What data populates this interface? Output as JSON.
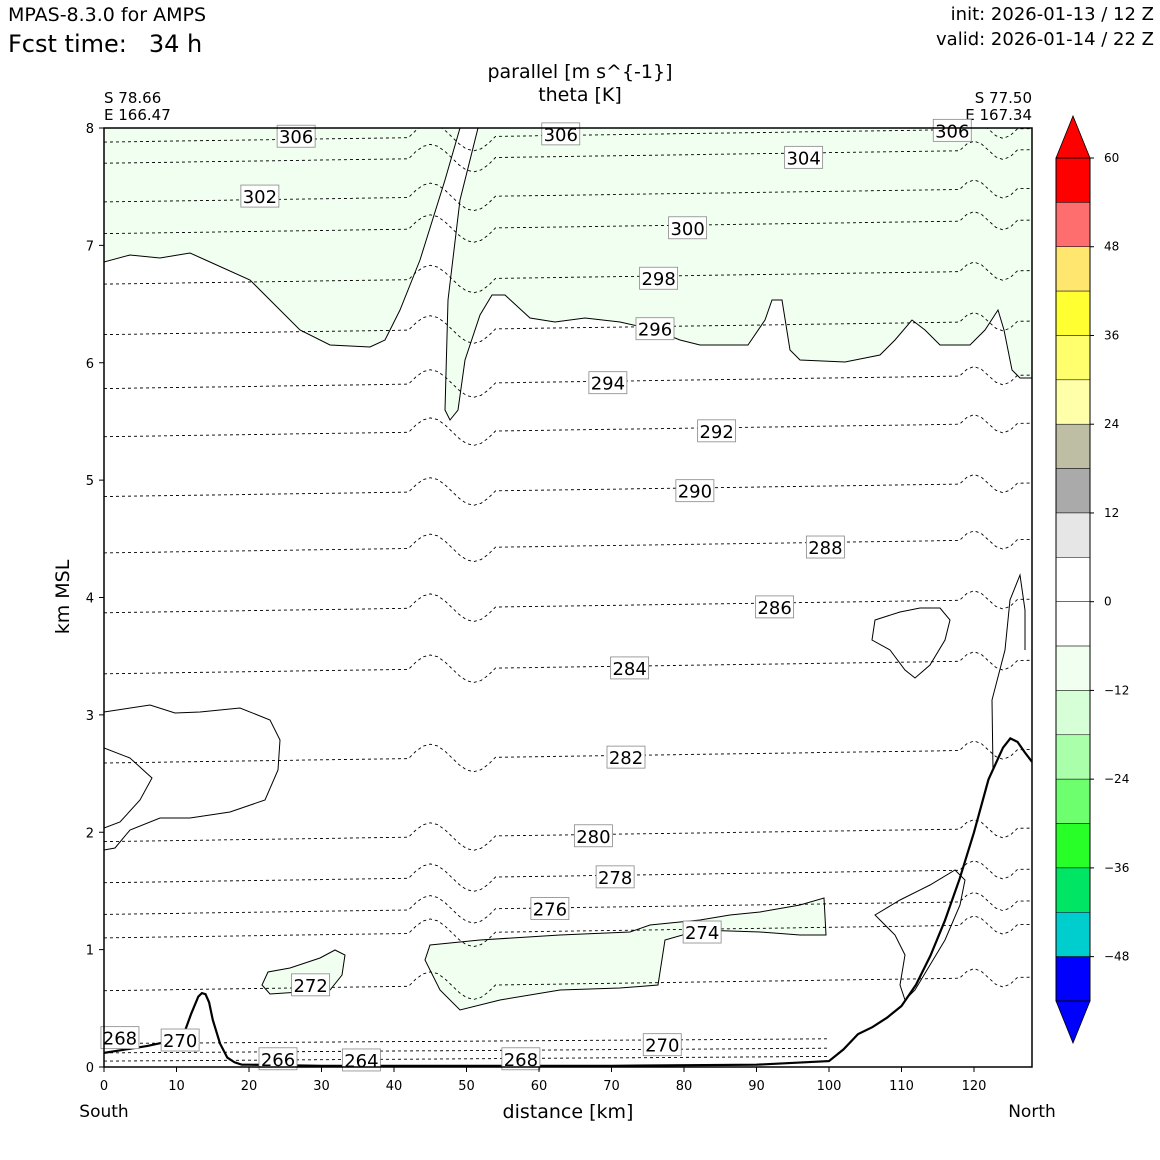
{
  "header": {
    "model": "MPAS-8.3.0 for AMPS",
    "fcst_label": "Fcst time:",
    "fcst_value": "34 h",
    "init": "init: 2026-01-13 / 12 Z",
    "valid": "valid: 2026-01-14 / 22 Z"
  },
  "chart_data": {
    "type": "cross-section",
    "title_line1": "parallel [m s^{-1}]",
    "title_line2": "theta [K]",
    "xlabel": "distance [km]",
    "ylabel": "km MSL",
    "xlim": [
      0,
      128
    ],
    "ylim": [
      0,
      8
    ],
    "xticks": [
      0,
      10,
      20,
      30,
      40,
      50,
      60,
      70,
      80,
      90,
      100,
      110,
      120
    ],
    "yticks": [
      0,
      1,
      2,
      3,
      4,
      5,
      6,
      7,
      8
    ],
    "left_end": {
      "lat": "S 78.66",
      "lon": "E 166.47",
      "dir": "South"
    },
    "right_end": {
      "lat": "S 77.50",
      "lon": "E 167.34",
      "dir": "North"
    },
    "colorbar": {
      "ticks": [
        "60",
        "48",
        "36",
        "24",
        "12",
        "0",
        "−12",
        "−24",
        "−36",
        "−48"
      ],
      "tick_values": [
        60,
        48,
        36,
        24,
        12,
        0,
        -12,
        -24,
        -36,
        -48
      ],
      "over_color": "#ff0000",
      "under_color": "#0000ff",
      "bands": [
        {
          "lo": 54,
          "hi": 60,
          "color": "#ff0000"
        },
        {
          "lo": 48,
          "hi": 54,
          "color": "#ff6e6e"
        },
        {
          "lo": 42,
          "hi": 48,
          "color": "#ffe66e"
        },
        {
          "lo": 36,
          "hi": 42,
          "color": "#ffff32"
        },
        {
          "lo": 30,
          "hi": 36,
          "color": "#ffff6e"
        },
        {
          "lo": 24,
          "hi": 30,
          "color": "#ffffaa"
        },
        {
          "lo": 18,
          "hi": 24,
          "color": "#bebea5"
        },
        {
          "lo": 12,
          "hi": 18,
          "color": "#aaaaaa"
        },
        {
          "lo": 6,
          "hi": 12,
          "color": "#e6e6e6"
        },
        {
          "lo": 0,
          "hi": 6,
          "color": "#ffffff"
        },
        {
          "lo": -6,
          "hi": 0,
          "color": "#ffffff"
        },
        {
          "lo": -12,
          "hi": -6,
          "color": "#f0fff0"
        },
        {
          "lo": -18,
          "hi": -12,
          "color": "#d7ffd7"
        },
        {
          "lo": -24,
          "hi": -18,
          "color": "#aaffaa"
        },
        {
          "lo": -30,
          "hi": -24,
          "color": "#6eff6e"
        },
        {
          "lo": -36,
          "hi": -30,
          "color": "#28ff28"
        },
        {
          "lo": -42,
          "hi": -36,
          "color": "#00e664"
        },
        {
          "lo": -48,
          "hi": -42,
          "color": "#00cdcd"
        },
        {
          "lo": -54,
          "hi": -48,
          "color": "#0000ff"
        }
      ]
    },
    "theta_labels": [
      {
        "text": "306",
        "x": 26.5,
        "y": 7.93
      },
      {
        "text": "306",
        "x": 63.0,
        "y": 7.95
      },
      {
        "text": "306",
        "x": 117.0,
        "y": 7.98
      },
      {
        "text": "304",
        "x": 96.5,
        "y": 7.75
      },
      {
        "text": "302",
        "x": 21.5,
        "y": 7.42
      },
      {
        "text": "300",
        "x": 80.5,
        "y": 7.15
      },
      {
        "text": "298",
        "x": 76.5,
        "y": 6.72
      },
      {
        "text": "296",
        "x": 76.0,
        "y": 6.29
      },
      {
        "text": "294",
        "x": 69.5,
        "y": 5.83
      },
      {
        "text": "292",
        "x": 84.5,
        "y": 5.42
      },
      {
        "text": "290",
        "x": 81.5,
        "y": 4.91
      },
      {
        "text": "288",
        "x": 99.5,
        "y": 4.43
      },
      {
        "text": "286",
        "x": 92.5,
        "y": 3.92
      },
      {
        "text": "284",
        "x": 72.5,
        "y": 3.4
      },
      {
        "text": "282",
        "x": 72.0,
        "y": 2.64
      },
      {
        "text": "280",
        "x": 67.5,
        "y": 1.97
      },
      {
        "text": "278",
        "x": 70.5,
        "y": 1.62
      },
      {
        "text": "276",
        "x": 61.5,
        "y": 1.35
      },
      {
        "text": "274",
        "x": 82.5,
        "y": 1.15
      },
      {
        "text": "272",
        "x": 28.5,
        "y": 0.7
      },
      {
        "text": "270",
        "x": 77.0,
        "y": 0.19
      },
      {
        "text": "270",
        "x": 10.5,
        "y": 0.23
      },
      {
        "text": "268",
        "x": 2.2,
        "y": 0.25
      },
      {
        "text": "268",
        "x": 57.5,
        "y": 0.07
      },
      {
        "text": "266",
        "x": 24.0,
        "y": 0.07
      },
      {
        "text": "264",
        "x": 35.5,
        "y": 0.06
      }
    ],
    "theta_levels": [
      268,
      270,
      272,
      274,
      276,
      278,
      280,
      282,
      284,
      286,
      288,
      290,
      292,
      294,
      296,
      298,
      300,
      302,
      304,
      306
    ],
    "terrain": {
      "x": [
        0,
        3,
        6,
        9,
        11,
        12,
        13,
        13.5,
        14,
        14.5,
        15,
        16,
        17,
        18,
        19,
        20,
        30,
        50,
        70,
        90,
        100,
        102,
        104,
        106,
        108,
        110,
        112,
        114,
        116,
        118,
        120,
        122,
        124,
        125,
        126,
        127,
        128
      ],
      "y": [
        0.12,
        0.15,
        0.18,
        0.22,
        0.28,
        0.45,
        0.6,
        0.63,
        0.62,
        0.55,
        0.4,
        0.2,
        0.08,
        0.04,
        0.02,
        0.02,
        0.01,
        0.01,
        0.01,
        0.02,
        0.05,
        0.15,
        0.28,
        0.34,
        0.42,
        0.52,
        0.7,
        0.95,
        1.25,
        1.6,
        2.0,
        2.45,
        2.72,
        2.8,
        2.77,
        2.68,
        2.6
      ]
    }
  }
}
